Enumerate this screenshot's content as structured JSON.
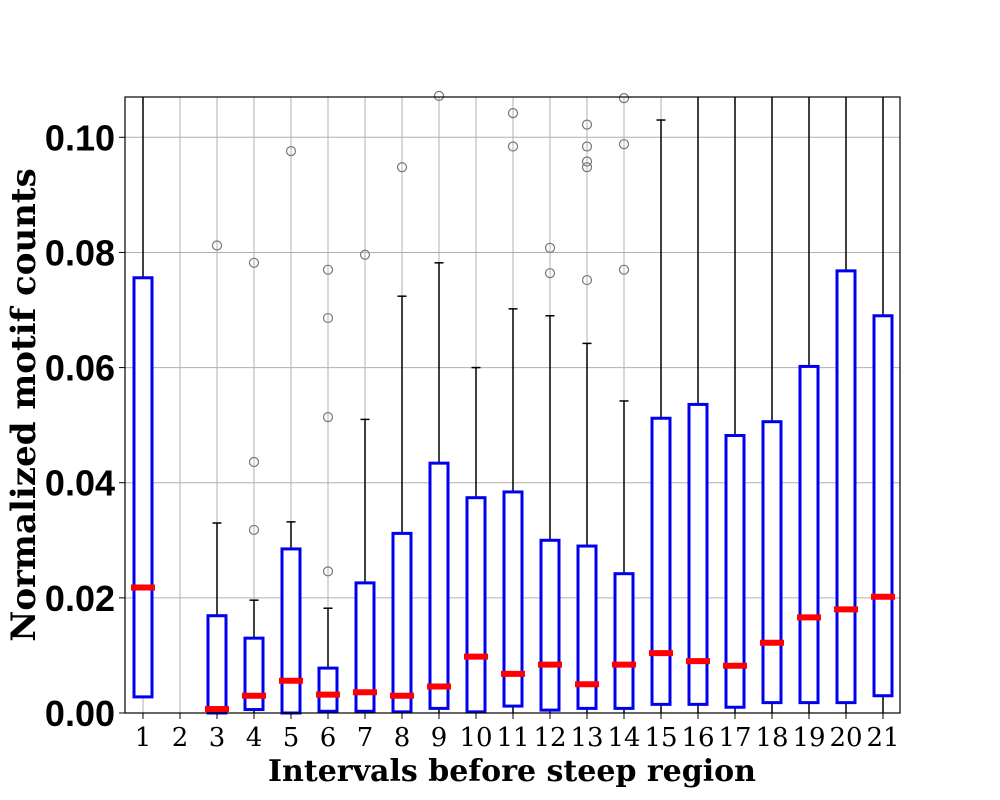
{
  "chart_data": {
    "type": "box",
    "title": "",
    "xlabel": "Intervals before steep region",
    "ylabel": "Normalized motif counts",
    "ylim": [
      0,
      0.107
    ],
    "yticks": [
      0.0,
      0.02,
      0.04,
      0.06,
      0.08,
      0.1
    ],
    "ytick_labels": [
      "0.00",
      "0.02",
      "0.04",
      "0.06",
      "0.08",
      "0.10"
    ],
    "grid": true,
    "colors": {
      "box": "#0000ee",
      "median": "#ff0000",
      "whisker": "#000000",
      "flier": "#777777",
      "grid": "#b0b0b0"
    },
    "boxes": [
      {
        "label": "1",
        "q1": 0.0028,
        "median": 0.0218,
        "q3": 0.0756,
        "whisker_low": 0.0028,
        "whisker_high": 0.107,
        "fliers": []
      },
      {
        "label": "2",
        "q1": null,
        "median": null,
        "q3": null,
        "whisker_low": null,
        "whisker_high": null,
        "fliers": []
      },
      {
        "label": "3",
        "q1": 0.0,
        "median": 0.0007,
        "q3": 0.0169,
        "whisker_low": 0.0,
        "whisker_high": 0.033,
        "fliers": [
          0.0812
        ]
      },
      {
        "label": "4",
        "q1": 0.0006,
        "median": 0.003,
        "q3": 0.013,
        "whisker_low": 0.0,
        "whisker_high": 0.0196,
        "fliers": [
          0.0318,
          0.0436,
          0.0782
        ]
      },
      {
        "label": "5",
        "q1": 0.0,
        "median": 0.0056,
        "q3": 0.0285,
        "whisker_low": 0.0,
        "whisker_high": 0.0332,
        "fliers": [
          0.0976
        ]
      },
      {
        "label": "6",
        "q1": 0.0003,
        "median": 0.0032,
        "q3": 0.0078,
        "whisker_low": 0.0,
        "whisker_high": 0.0182,
        "fliers": [
          0.0246,
          0.0514,
          0.0686,
          0.077
        ]
      },
      {
        "label": "7",
        "q1": 0.0003,
        "median": 0.0036,
        "q3": 0.0226,
        "whisker_low": 0.0,
        "whisker_high": 0.051,
        "fliers": [
          0.0796
        ]
      },
      {
        "label": "8",
        "q1": 0.0002,
        "median": 0.003,
        "q3": 0.0312,
        "whisker_low": 0.0,
        "whisker_high": 0.0724,
        "fliers": [
          0.0948
        ]
      },
      {
        "label": "9",
        "q1": 0.0008,
        "median": 0.0046,
        "q3": 0.0434,
        "whisker_low": 0.0,
        "whisker_high": 0.0782,
        "fliers": [
          0.1072
        ]
      },
      {
        "label": "10",
        "q1": 0.0002,
        "median": 0.0098,
        "q3": 0.0374,
        "whisker_low": 0.0,
        "whisker_high": 0.06,
        "fliers": []
      },
      {
        "label": "11",
        "q1": 0.0012,
        "median": 0.0068,
        "q3": 0.0384,
        "whisker_low": 0.0,
        "whisker_high": 0.0702,
        "fliers": [
          0.0984,
          0.1042
        ]
      },
      {
        "label": "12",
        "q1": 0.0005,
        "median": 0.0084,
        "q3": 0.03,
        "whisker_low": 0.0,
        "whisker_high": 0.069,
        "fliers": [
          0.0764,
          0.0808
        ]
      },
      {
        "label": "13",
        "q1": 0.0008,
        "median": 0.005,
        "q3": 0.029,
        "whisker_low": 0.0,
        "whisker_high": 0.0642,
        "fliers": [
          0.0752,
          0.0948,
          0.0958,
          0.0984,
          0.1022
        ]
      },
      {
        "label": "14",
        "q1": 0.0008,
        "median": 0.0084,
        "q3": 0.0242,
        "whisker_low": 0.0,
        "whisker_high": 0.0542,
        "fliers": [
          0.077,
          0.0988,
          0.1068
        ]
      },
      {
        "label": "15",
        "q1": 0.0015,
        "median": 0.0104,
        "q3": 0.0512,
        "whisker_low": 0.0,
        "whisker_high": 0.103,
        "fliers": []
      },
      {
        "label": "16",
        "q1": 0.0015,
        "median": 0.009,
        "q3": 0.0536,
        "whisker_low": 0.0,
        "whisker_high": 0.107,
        "fliers": []
      },
      {
        "label": "17",
        "q1": 0.001,
        "median": 0.0082,
        "q3": 0.0482,
        "whisker_low": 0.0,
        "whisker_high": 0.107,
        "fliers": []
      },
      {
        "label": "18",
        "q1": 0.0018,
        "median": 0.0122,
        "q3": 0.0506,
        "whisker_low": 0.0,
        "whisker_high": 0.107,
        "fliers": []
      },
      {
        "label": "19",
        "q1": 0.0018,
        "median": 0.0166,
        "q3": 0.0602,
        "whisker_low": 0.0,
        "whisker_high": 0.107,
        "fliers": []
      },
      {
        "label": "20",
        "q1": 0.0018,
        "median": 0.018,
        "q3": 0.0768,
        "whisker_low": 0.0,
        "whisker_high": 0.107,
        "fliers": []
      },
      {
        "label": "21",
        "q1": 0.003,
        "median": 0.0202,
        "q3": 0.069,
        "whisker_low": 0.0,
        "whisker_high": 0.107,
        "fliers": []
      }
    ]
  }
}
